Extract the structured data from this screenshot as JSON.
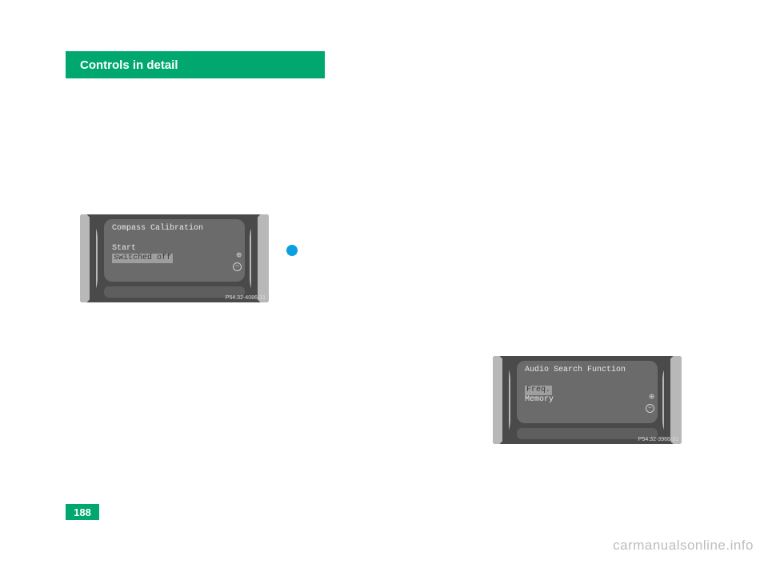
{
  "header": {
    "title": "Controls in detail"
  },
  "page_number": "188",
  "watermark": "carmanualsonline.info",
  "figure1": {
    "title": "Compass Calibration",
    "line1": "Start",
    "line2": "switched off",
    "ref": "P54.32-4086-31"
  },
  "figure2": {
    "title": "Audio Search Function",
    "line1": "Freq.",
    "line2": "Memory",
    "ref": "P54.32-3966-31"
  },
  "colors": {
    "accent": "#00a870",
    "bullet": "#0aa0e0",
    "panel": "#4a4a4a",
    "screen": "#6b6b6b",
    "gauge": "#b8b8b8",
    "watermark": "#bdbdbd"
  }
}
